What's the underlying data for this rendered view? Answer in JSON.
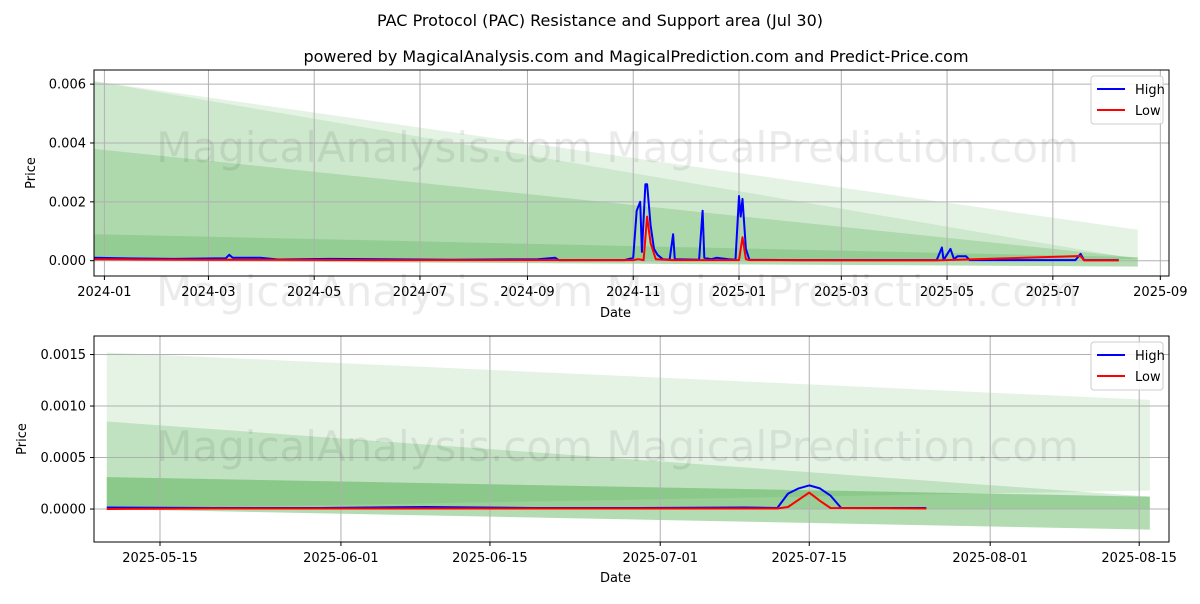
{
  "title": "PAC Protocol (PAC) Resistance and Support area (Jul 30)",
  "subtitle": "powered by MagicalAnalysis.com and MagicalPrediction.com and Predict-Price.com",
  "watermark": "MagicalAnalysis.com    MagicalPrediction.com",
  "colors": {
    "high": "#0000ff",
    "low": "#ff0000",
    "band": "#2ca02c",
    "grid": "#b0b0b0"
  },
  "chart_data": [
    {
      "type": "line",
      "xlabel": "Date",
      "ylabel": "Price",
      "legend": "top-right",
      "grid": true,
      "x_domain": [
        -6,
        614
      ],
      "ylim": [
        -0.00052,
        0.00648
      ],
      "x_ticks": [
        {
          "label": "2024-01",
          "x": 0
        },
        {
          "label": "2024-03",
          "x": 60
        },
        {
          "label": "2024-05",
          "x": 121
        },
        {
          "label": "2024-07",
          "x": 182
        },
        {
          "label": "2024-09",
          "x": 244
        },
        {
          "label": "2024-11",
          "x": 305
        },
        {
          "label": "2025-01",
          "x": 366
        },
        {
          "label": "2025-03",
          "x": 425
        },
        {
          "label": "2025-05",
          "x": 486
        },
        {
          "label": "2025-07",
          "x": 547
        },
        {
          "label": "2025-09",
          "x": 609
        }
      ],
      "y_ticks": [
        {
          "label": "0.000",
          "v": 0
        },
        {
          "label": "0.002",
          "v": 0.002
        },
        {
          "label": "0.004",
          "v": 0.004
        },
        {
          "label": "0.006",
          "v": 0.006
        }
      ],
      "bands": [
        {
          "x0": -6,
          "x1": 596,
          "top0": 0.0061,
          "top1": 0.00105,
          "bot0": 0,
          "bot1": 5e-05,
          "opacity": 0.12
        },
        {
          "x0": -6,
          "x1": 596,
          "top0": 0.0061,
          "top1": 5e-05,
          "bot0": 5e-05,
          "bot1": 5e-05,
          "opacity": 0.12
        },
        {
          "x0": -6,
          "x1": 596,
          "top0": 0.0038,
          "top1": 0.0001,
          "bot0": 0,
          "bot1": -0.0002,
          "opacity": 0.2
        },
        {
          "x0": -6,
          "x1": 596,
          "top0": 0.0009,
          "top1": 0.00012,
          "bot0": 0,
          "bot1": -0.0002,
          "opacity": 0.2
        }
      ],
      "series": [
        {
          "name": "High",
          "points": [
            [
              -6,
              0.0001
            ],
            [
              10,
              8e-05
            ],
            [
              40,
              6e-05
            ],
            [
              70,
              8e-05
            ],
            [
              72,
              0.0002
            ],
            [
              74,
              0.0001
            ],
            [
              90,
              0.0001
            ],
            [
              100,
              4e-05
            ],
            [
              130,
              6e-05
            ],
            [
              160,
              5e-05
            ],
            [
              200,
              3e-05
            ],
            [
              250,
              5e-05
            ],
            [
              260,
              0.0001
            ],
            [
              262,
              2e-05
            ],
            [
              300,
              2e-05
            ],
            [
              305,
              0.0001
            ],
            [
              307,
              0.0017
            ],
            [
              309,
              0.002
            ],
            [
              310,
              0.0003
            ],
            [
              312,
              0.0026
            ],
            [
              313,
              0.0026
            ],
            [
              315,
              0.0012
            ],
            [
              317,
              0.0004
            ],
            [
              319,
              0.0002
            ],
            [
              322,
              5e-05
            ],
            [
              326,
              3e-05
            ],
            [
              328,
              0.0009
            ],
            [
              329,
              5e-05
            ],
            [
              343,
              3e-05
            ],
            [
              345,
              0.0017
            ],
            [
              346,
              0.0001
            ],
            [
              350,
              5e-05
            ],
            [
              353,
              0.0001
            ],
            [
              360,
              5e-05
            ],
            [
              364,
              3e-05
            ],
            [
              366,
              0.0022
            ],
            [
              367,
              0.0015
            ],
            [
              368,
              0.0021
            ],
            [
              370,
              0.0004
            ],
            [
              372,
              3e-05
            ],
            [
              400,
              2e-05
            ],
            [
              480,
              2e-05
            ],
            [
              483,
              0.00045
            ],
            [
              484,
              2e-05
            ],
            [
              488,
              0.0004
            ],
            [
              490,
              5e-05
            ],
            [
              492,
              0.00015
            ],
            [
              497,
              0.00015
            ],
            [
              499,
              2e-05
            ],
            [
              560,
              2e-05
            ],
            [
              563,
              0.00023
            ],
            [
              565,
              2e-05
            ],
            [
              585,
              2e-05
            ]
          ]
        },
        {
          "name": "Low",
          "points": [
            [
              -6,
              5e-05
            ],
            [
              20,
              4e-05
            ],
            [
              60,
              3e-05
            ],
            [
              100,
              3e-05
            ],
            [
              160,
              2e-05
            ],
            [
              250,
              2e-05
            ],
            [
              305,
              2e-05
            ],
            [
              308,
              5e-05
            ],
            [
              311,
              2e-05
            ],
            [
              313,
              0.0015
            ],
            [
              315,
              0.0006
            ],
            [
              318,
              5e-05
            ],
            [
              328,
              2e-05
            ],
            [
              366,
              2e-05
            ],
            [
              368,
              0.0008
            ],
            [
              370,
              5e-05
            ],
            [
              372,
              2e-05
            ],
            [
              480,
              1e-05
            ],
            [
              563,
              0.00016
            ],
            [
              565,
              1e-05
            ],
            [
              585,
              1e-05
            ]
          ]
        }
      ]
    },
    {
      "type": "line",
      "xlabel": "Date",
      "ylabel": "Price",
      "legend": "top-right",
      "grid": true,
      "x_domain": [
        -1.2,
        99.8
      ],
      "ylim": [
        -0.00032,
        0.00168
      ],
      "x_ticks": [
        {
          "label": "2025-05-15",
          "x": 5
        },
        {
          "label": "2025-06-01",
          "x": 22
        },
        {
          "label": "2025-06-15",
          "x": 36
        },
        {
          "label": "2025-07-01",
          "x": 52
        },
        {
          "label": "2025-07-15",
          "x": 66
        },
        {
          "label": "2025-08-01",
          "x": 83
        },
        {
          "label": "2025-08-15",
          "x": 97
        }
      ],
      "y_ticks": [
        {
          "label": "0.0000",
          "v": 0
        },
        {
          "label": "0.0005",
          "v": 0.0005
        },
        {
          "label": "0.0010",
          "v": 0.001
        },
        {
          "label": "0.0015",
          "v": 0.0015
        }
      ],
      "bands": [
        {
          "x0": 0,
          "x1": 98,
          "top0": 0.00152,
          "top1": 0.00106,
          "bot0": 0,
          "bot1": 0.00018,
          "opacity": 0.12
        },
        {
          "x0": 0,
          "x1": 98,
          "top0": 0.00085,
          "top1": 0.00012,
          "bot0": 0,
          "bot1": -0.0002,
          "opacity": 0.2
        },
        {
          "x0": 0,
          "x1": 98,
          "top0": 0.00031,
          "top1": 0.00012,
          "bot0": 0,
          "bot1": 0,
          "opacity": 0.2
        },
        {
          "x0": 0,
          "x1": 98,
          "top0": 0.00031,
          "top1": 0.00012,
          "bot0": 0,
          "bot1": -0.0002,
          "opacity": 0.2
        }
      ],
      "series": [
        {
          "name": "High",
          "points": [
            [
              0,
              1.5e-05
            ],
            [
              10,
              1e-05
            ],
            [
              20,
              1e-05
            ],
            [
              30,
              2e-05
            ],
            [
              40,
              1e-05
            ],
            [
              50,
              1e-05
            ],
            [
              60,
              1.5e-05
            ],
            [
              63,
              1e-05
            ],
            [
              64,
              0.00015
            ],
            [
              65,
              0.0002
            ],
            [
              66,
              0.00023
            ],
            [
              67,
              0.0002
            ],
            [
              68,
              0.00013
            ],
            [
              69,
              1e-05
            ],
            [
              72,
              1e-05
            ],
            [
              77,
              1e-05
            ]
          ]
        },
        {
          "name": "Low",
          "points": [
            [
              0,
              0.0
            ],
            [
              10,
              5e-06
            ],
            [
              30,
              5e-06
            ],
            [
              50,
              5e-06
            ],
            [
              63,
              5e-06
            ],
            [
              64,
              2e-05
            ],
            [
              66,
              0.00016
            ],
            [
              67,
              8e-05
            ],
            [
              68,
              1e-05
            ],
            [
              77,
              5e-06
            ]
          ]
        }
      ]
    }
  ]
}
